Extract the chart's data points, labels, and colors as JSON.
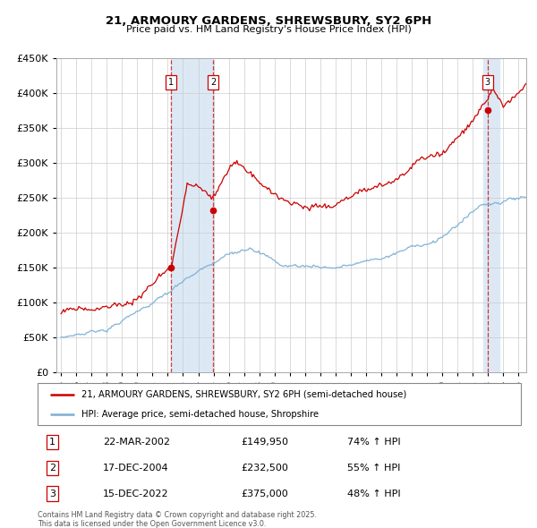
{
  "title": "21, ARMOURY GARDENS, SHREWSBURY, SY2 6PH",
  "subtitle": "Price paid vs. HM Land Registry's House Price Index (HPI)",
  "legend_label_red": "21, ARMOURY GARDENS, SHREWSBURY, SY2 6PH (semi-detached house)",
  "legend_label_blue": "HPI: Average price, semi-detached house, Shropshire",
  "footer": "Contains HM Land Registry data © Crown copyright and database right 2025.\nThis data is licensed under the Open Government Licence v3.0.",
  "transactions": [
    {
      "num": "1",
      "date": "22-MAR-2002",
      "price": "£149,950",
      "pct": "74% ↑ HPI",
      "year": 2002.22,
      "value": 149950
    },
    {
      "num": "2",
      "date": "17-DEC-2004",
      "price": "£232,500",
      "pct": "55% ↑ HPI",
      "year": 2004.96,
      "value": 232500
    },
    {
      "num": "3",
      "date": "15-DEC-2022",
      "price": "£375,000",
      "pct": "48% ↑ HPI",
      "year": 2022.96,
      "value": 375000
    }
  ],
  "ylim": [
    0,
    450000
  ],
  "xlim_start": 1994.7,
  "xlim_end": 2025.5,
  "background_color": "#ffffff",
  "grid_color": "#cccccc",
  "red_color": "#cc0000",
  "blue_color": "#7bafd4",
  "shade_color": "#dce9f5",
  "xtick_labels": [
    "95",
    "96",
    "97",
    "98",
    "99",
    "00",
    "01",
    "02",
    "03",
    "04",
    "05",
    "06",
    "07",
    "08",
    "09",
    "10",
    "11",
    "12",
    "13",
    "14",
    "15",
    "16",
    "17",
    "18",
    "19",
    "20",
    "21",
    "22",
    "23",
    "24",
    "25"
  ],
  "xtick_years": [
    1995,
    1996,
    1997,
    1998,
    1999,
    2000,
    2001,
    2002,
    2003,
    2004,
    2005,
    2006,
    2007,
    2008,
    2009,
    2010,
    2011,
    2012,
    2013,
    2014,
    2015,
    2016,
    2017,
    2018,
    2019,
    2020,
    2021,
    2022,
    2023,
    2024,
    2025
  ]
}
